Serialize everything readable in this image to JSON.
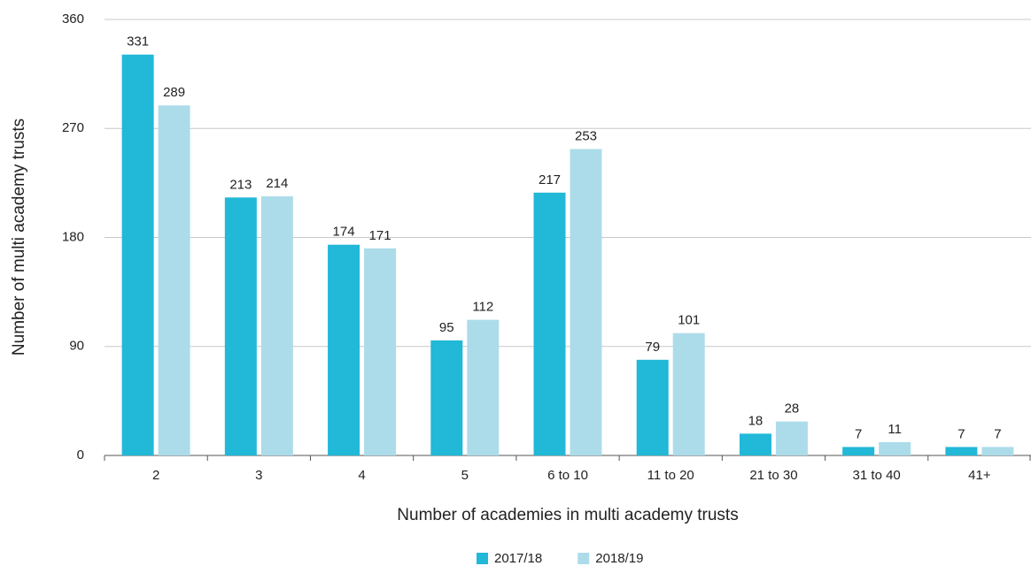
{
  "chart_data": {
    "type": "bar",
    "xlabel": "Number of academies in multi academy trusts",
    "ylabel": "Number of multi academy trusts",
    "categories": [
      "2",
      "3",
      "4",
      "5",
      "6 to 10",
      "11 to 20",
      "21 to 30",
      "31 to 40",
      "41+"
    ],
    "series": [
      {
        "name": "2017/18",
        "color": "#22b8d8",
        "values": [
          331,
          213,
          174,
          95,
          217,
          79,
          18,
          7,
          7
        ]
      },
      {
        "name": "2018/19",
        "color": "#acdcea",
        "values": [
          289,
          214,
          171,
          112,
          253,
          101,
          28,
          11,
          7
        ]
      }
    ],
    "ylim": [
      0,
      360
    ],
    "yticks": [
      0,
      90,
      180,
      270,
      360
    ],
    "grid": true,
    "legend": "bottom"
  }
}
